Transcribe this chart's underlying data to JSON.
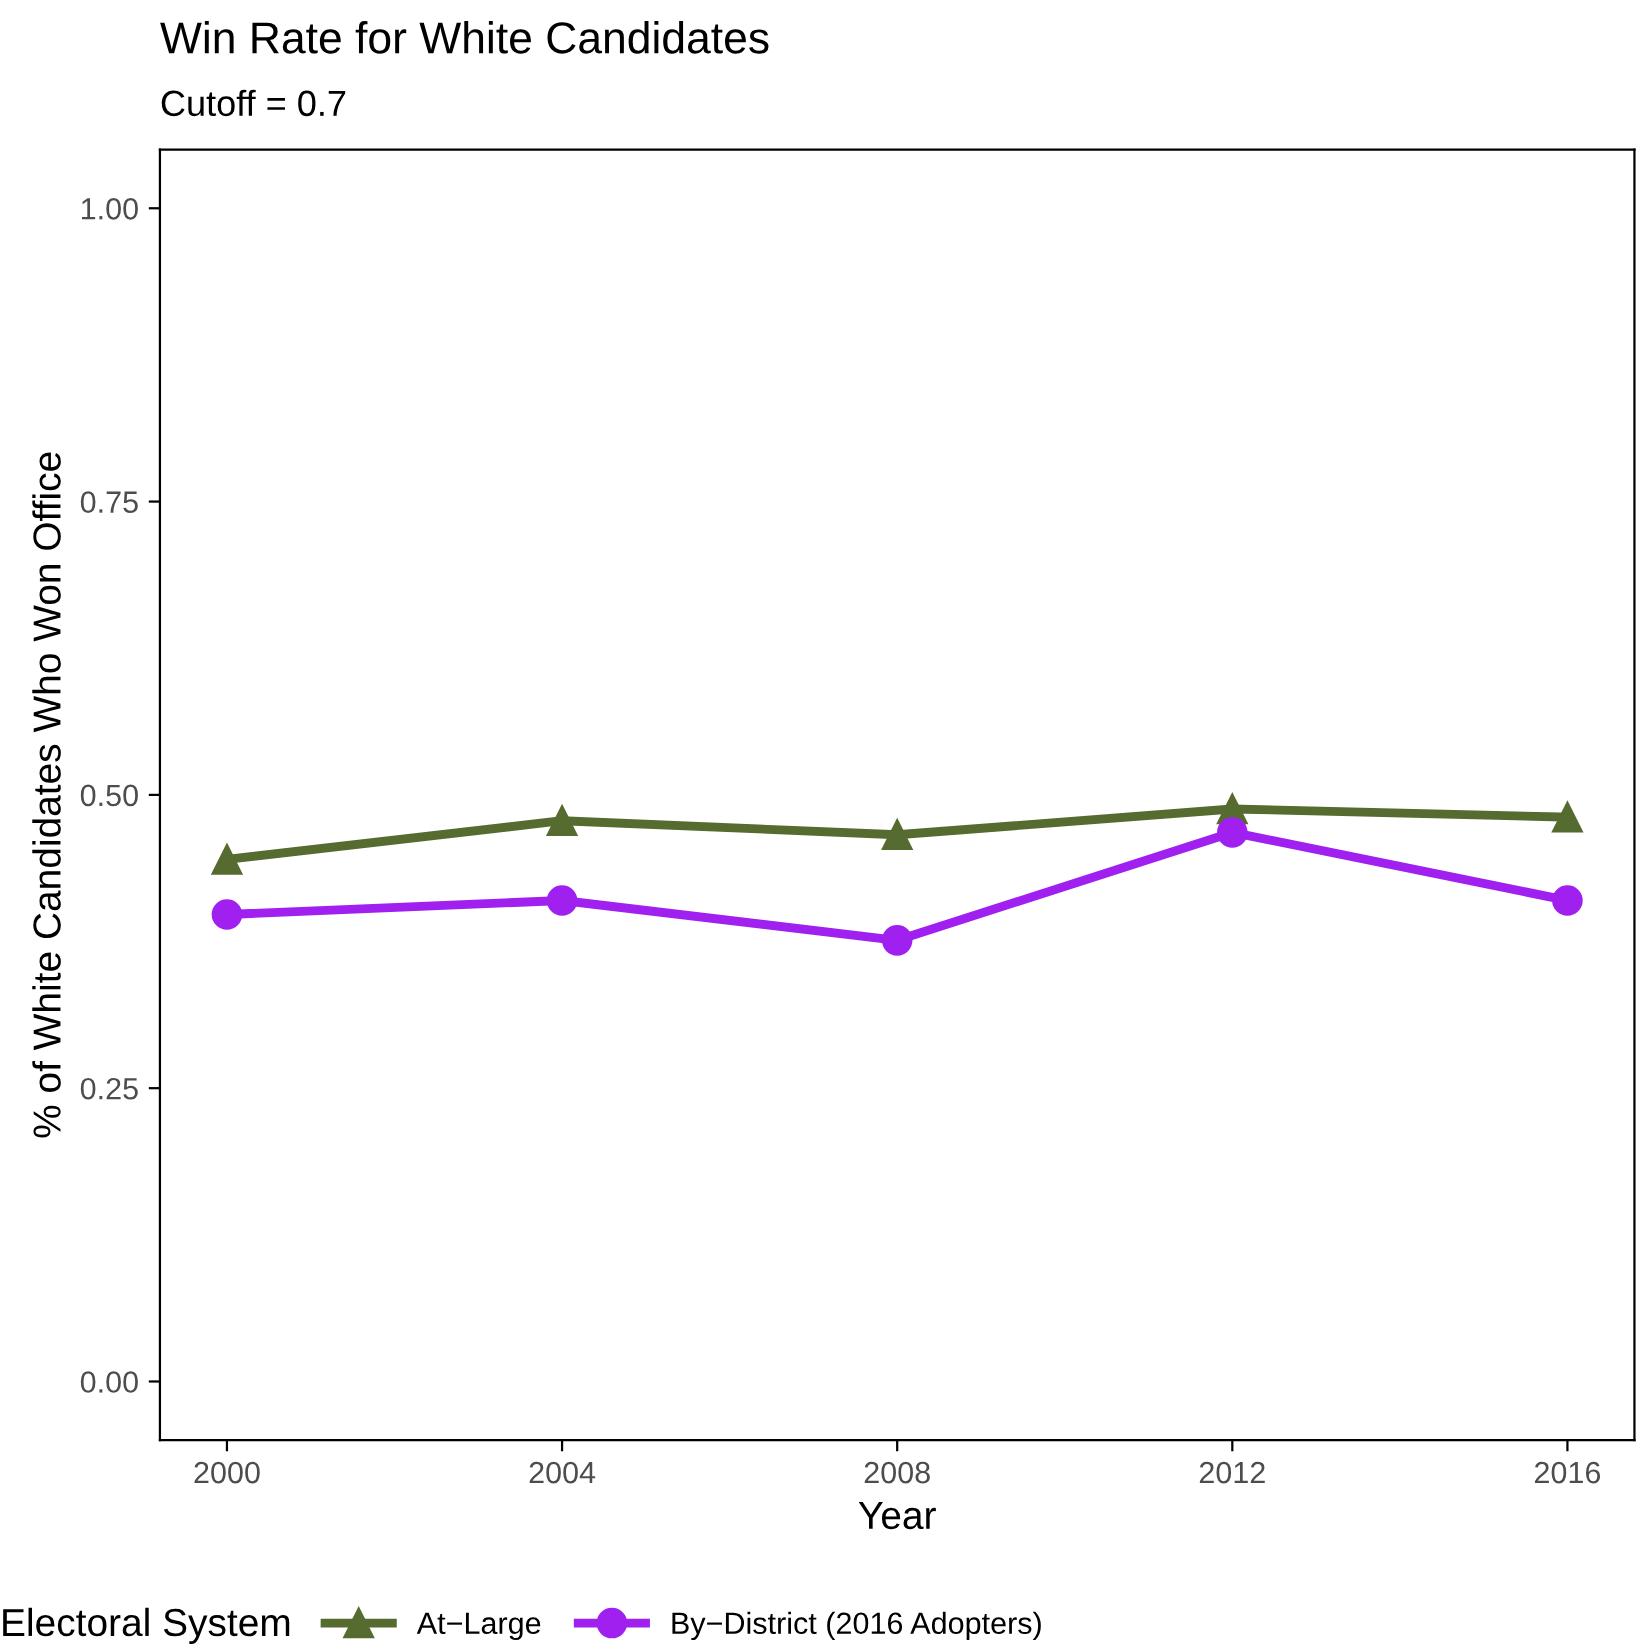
{
  "chart_data": {
    "type": "line",
    "title": "Win Rate for White Candidates",
    "subtitle": "Cutoff = 0.7",
    "xlabel": "Year",
    "ylabel": "% of White Candidates Who Won Office",
    "legend_title": "Electoral System",
    "x": [
      2000,
      2004,
      2008,
      2012,
      2016
    ],
    "series": [
      {
        "name": "At−Large",
        "color": "#556b2f",
        "marker": "triangle",
        "values": [
          0.445,
          0.478,
          0.466,
          0.488,
          0.481
        ]
      },
      {
        "name": "By−District (2016 Adopters)",
        "color": "#a020f0",
        "marker": "circle",
        "values": [
          0.398,
          0.41,
          0.376,
          0.468,
          0.41
        ]
      }
    ],
    "xlim": [
      1999.2,
      2016.8
    ],
    "xticks": [
      2000,
      2004,
      2008,
      2012,
      2016
    ],
    "ylim": [
      -0.05,
      1.05
    ],
    "yticks": [
      {
        "value": 0,
        "label": "0.00"
      },
      {
        "value": 0.25,
        "label": "0.25"
      },
      {
        "value": 0.5,
        "label": "0.50"
      },
      {
        "value": 0.75,
        "label": "0.75"
      },
      {
        "value": 1,
        "label": "1.00"
      }
    ],
    "grid": false,
    "legend": "bottom",
    "line_style": "solid"
  }
}
